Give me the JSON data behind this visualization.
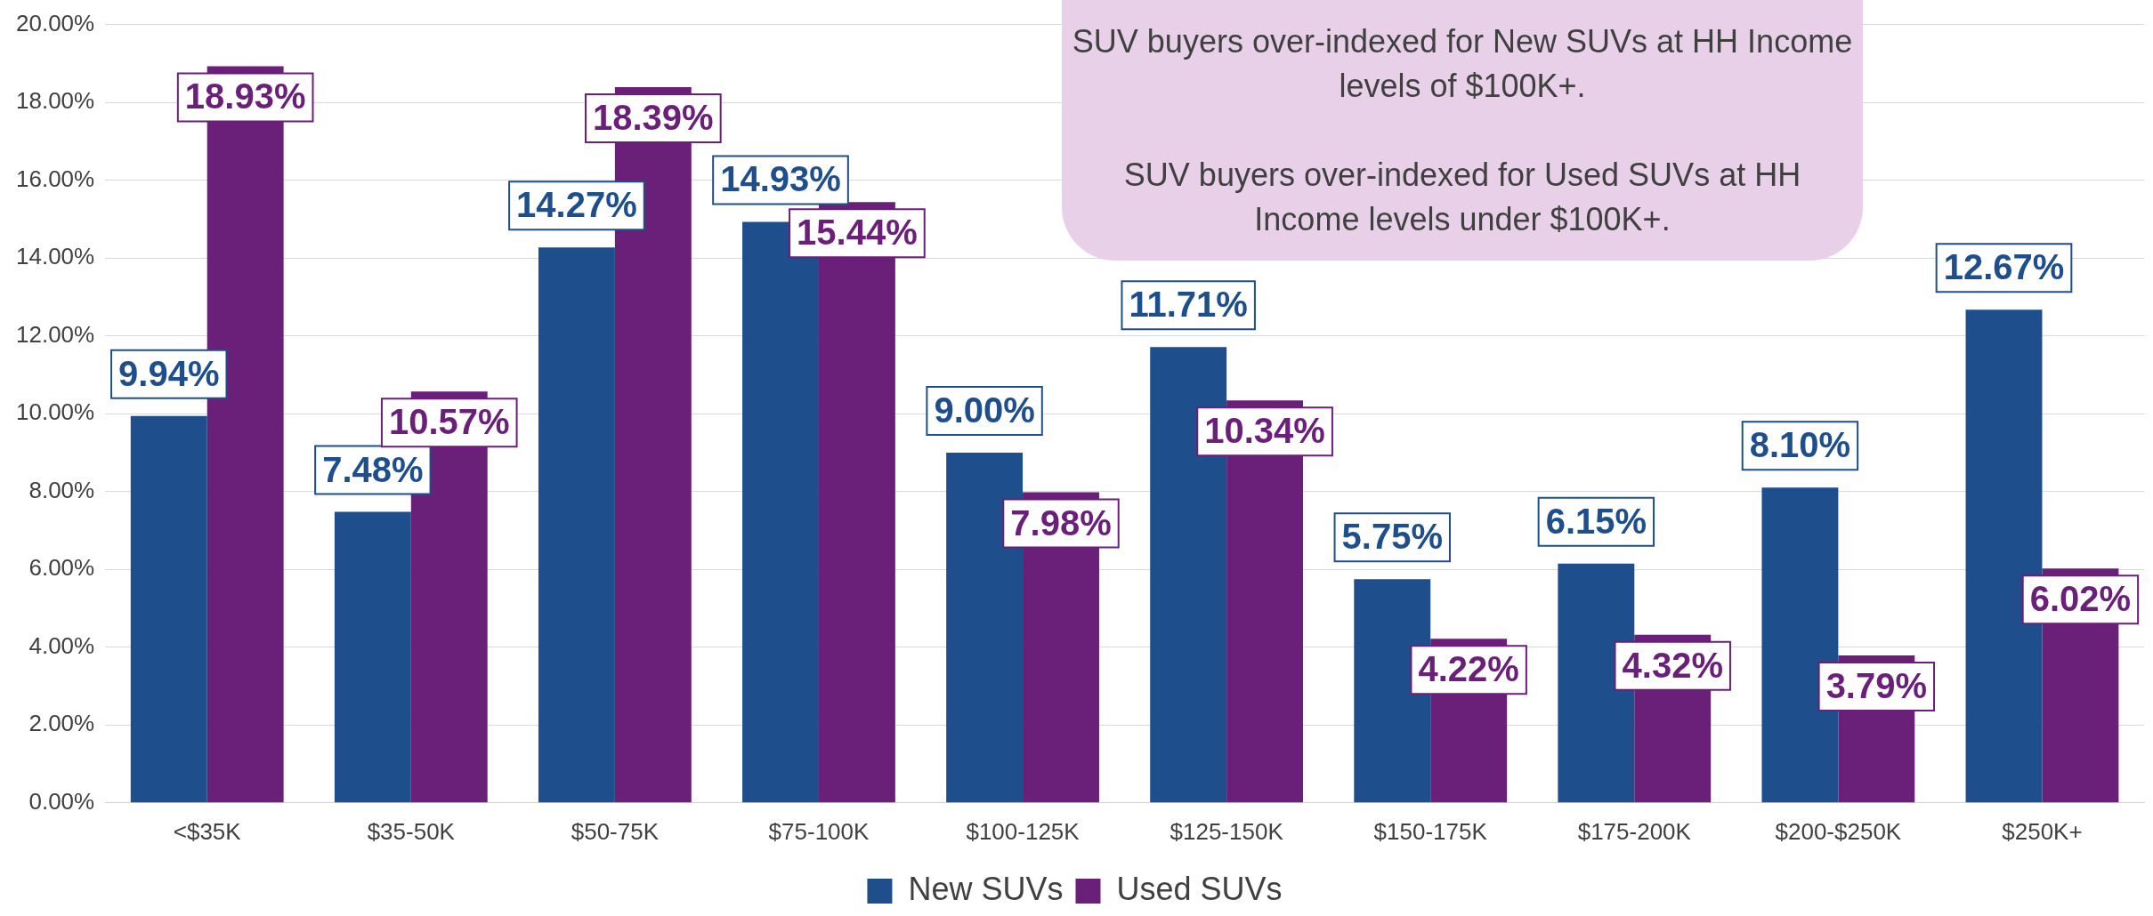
{
  "chart_data": {
    "type": "bar",
    "categories": [
      "<$35K",
      "$35-50K",
      "$50-75K",
      "$75-100K",
      "$100-125K",
      "$125-150K",
      "$150-175K",
      "$175-200K",
      "$200-$250K",
      "$250K+"
    ],
    "series": [
      {
        "name": "New SUVs",
        "color": "#1f4e8c",
        "values": [
          9.94,
          7.48,
          14.27,
          14.93,
          9.0,
          11.71,
          5.75,
          6.15,
          8.1,
          12.67
        ],
        "value_labels": [
          "9.94%",
          "7.48%",
          "14.27%",
          "14.93%",
          "9.00%",
          "11.71%",
          "5.75%",
          "6.15%",
          "8.10%",
          "12.67%"
        ]
      },
      {
        "name": "Used SUVs",
        "color": "#6a1f78",
        "values": [
          18.93,
          10.57,
          18.39,
          15.44,
          7.98,
          10.34,
          4.22,
          4.32,
          3.79,
          6.02
        ],
        "value_labels": [
          "18.93%",
          "10.57%",
          "18.39%",
          "15.44%",
          "7.98%",
          "10.34%",
          "4.22%",
          "4.32%",
          "3.79%",
          "6.02%"
        ]
      }
    ],
    "ylim": [
      0,
      20
    ],
    "yticks": [
      {
        "value": 0,
        "label": "0.00%"
      },
      {
        "value": 2,
        "label": "2.00%"
      },
      {
        "value": 4,
        "label": "4.00%"
      },
      {
        "value": 6,
        "label": "6.00%"
      },
      {
        "value": 8,
        "label": "8.00%"
      },
      {
        "value": 10,
        "label": "10.00%"
      },
      {
        "value": 12,
        "label": "12.00%"
      },
      {
        "value": 14,
        "label": "14.00%"
      },
      {
        "value": 16,
        "label": "16.00%"
      },
      {
        "value": 18,
        "label": "18.00%"
      },
      {
        "value": 20,
        "label": "20.00%"
      }
    ],
    "grid": "y",
    "legend": "bottom",
    "annotations": [
      "SUV buyers over-indexed for New SUVs at HH Income levels of $100K+.",
      "SUV buyers over-indexed for Used SUVs at HH Income levels under $100K+."
    ]
  }
}
